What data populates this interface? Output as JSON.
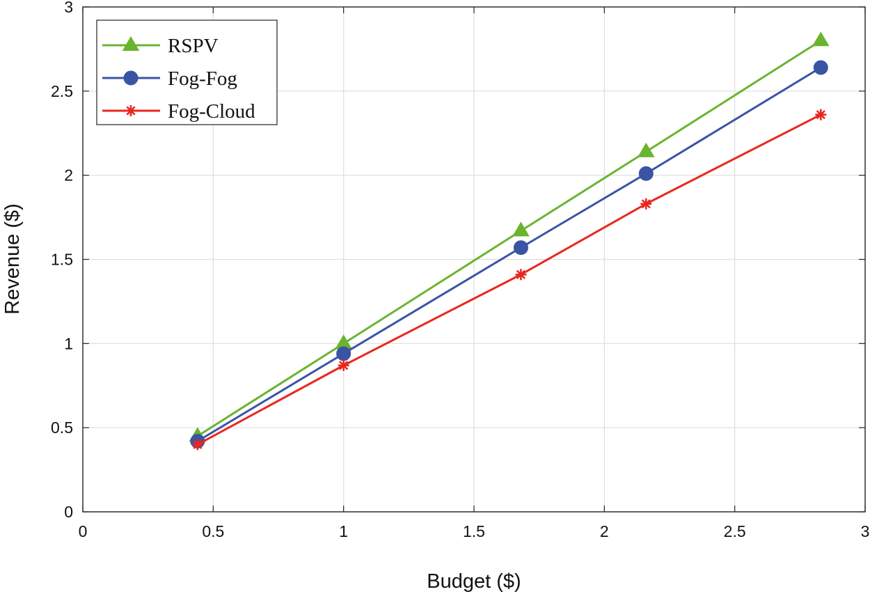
{
  "chart_data": {
    "type": "line",
    "title": "",
    "xlabel": "Budget ($)",
    "ylabel": "Revenue ($)",
    "xlim": [
      0,
      3
    ],
    "ylim": [
      0,
      3
    ],
    "xticks": [
      0,
      0.5,
      1,
      1.5,
      2,
      2.5,
      3
    ],
    "yticks": [
      0,
      0.5,
      1,
      1.5,
      2,
      2.5,
      3
    ],
    "xtick_labels": [
      "0",
      "0.5",
      "1",
      "1.5",
      "2",
      "2.5",
      "3"
    ],
    "ytick_labels": [
      "0",
      "0.5",
      "1",
      "1.5",
      "2",
      "2.5",
      "3"
    ],
    "grid": true,
    "legend_position": "top-left",
    "series": [
      {
        "name": "RSPV",
        "color": "#6ab42e",
        "marker": "triangle",
        "x": [
          0.44,
          1.0,
          1.68,
          2.16,
          2.83
        ],
        "y": [
          0.45,
          1.0,
          1.67,
          2.14,
          2.8
        ]
      },
      {
        "name": "Fog-Fog",
        "color": "#3a54a4",
        "marker": "circle",
        "x": [
          0.44,
          1.0,
          1.68,
          2.16,
          2.83
        ],
        "y": [
          0.42,
          0.94,
          1.57,
          2.01,
          2.64
        ]
      },
      {
        "name": "Fog-Cloud",
        "color": "#e8281f",
        "marker": "asterisk",
        "x": [
          0.44,
          1.0,
          1.68,
          2.16,
          2.83
        ],
        "y": [
          0.4,
          0.87,
          1.41,
          1.83,
          2.36
        ]
      }
    ]
  }
}
